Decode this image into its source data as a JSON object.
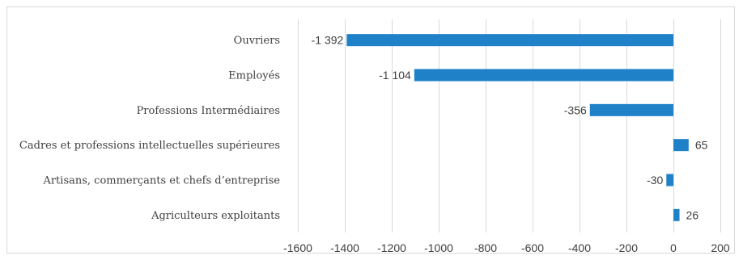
{
  "chart_data": {
    "type": "bar",
    "orientation": "horizontal",
    "categories": [
      "Ouvriers",
      "Employés",
      "Professions Intermédiaires",
      "Cadres et professions intellectuelles supérieures",
      "Artisans, commerçants et chefs d’entreprise",
      "Agriculteurs exploitants"
    ],
    "values": [
      -1392,
      -1104,
      -356,
      65,
      -30,
      26
    ],
    "data_labels": [
      "-1 392",
      "-1 104",
      "-356",
      "65",
      "-30",
      "26"
    ],
    "xlim": [
      -1600,
      200
    ],
    "x_ticks": [
      -1600,
      -1400,
      -1200,
      -1000,
      -800,
      -600,
      -400,
      -200,
      0,
      200
    ],
    "x_tick_labels": [
      "-1600",
      "-1400",
      "-1200",
      "-1000",
      "-800",
      "-600",
      "-400",
      "-200",
      "0",
      "200"
    ],
    "grid": true,
    "bar_color": "#1f82c9",
    "title": "",
    "xlabel": "",
    "ylabel": ""
  }
}
